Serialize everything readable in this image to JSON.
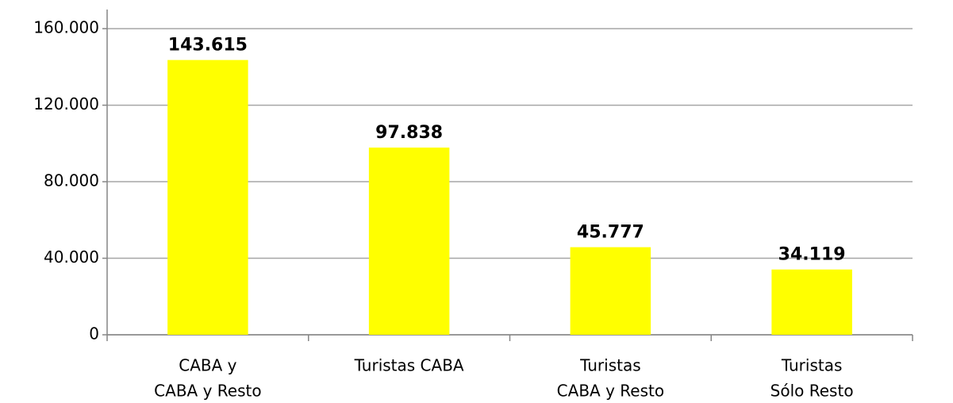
{
  "chart_data": {
    "type": "bar",
    "categories": [
      [
        "CABA y",
        "CABA y Resto"
      ],
      [
        "Turistas CABA"
      ],
      [
        "Turistas",
        "CABA y Resto"
      ],
      [
        "Turistas",
        "Sólo Resto"
      ]
    ],
    "values": [
      143615,
      97838,
      45777,
      34119
    ],
    "value_labels": [
      "143.615",
      "97.838",
      "45.777",
      "34.119"
    ],
    "color": "#ffff00",
    "ylim": [
      0,
      170000
    ],
    "yticks": [
      0,
      {
        "value": 40000,
        "label": "40.000"
      },
      {
        "value": 80000,
        "label": "80.000"
      },
      {
        "value": 120000,
        "label": "120.000"
      },
      {
        "value": 160000,
        "label": "160.000"
      }
    ],
    "grid": true
  }
}
